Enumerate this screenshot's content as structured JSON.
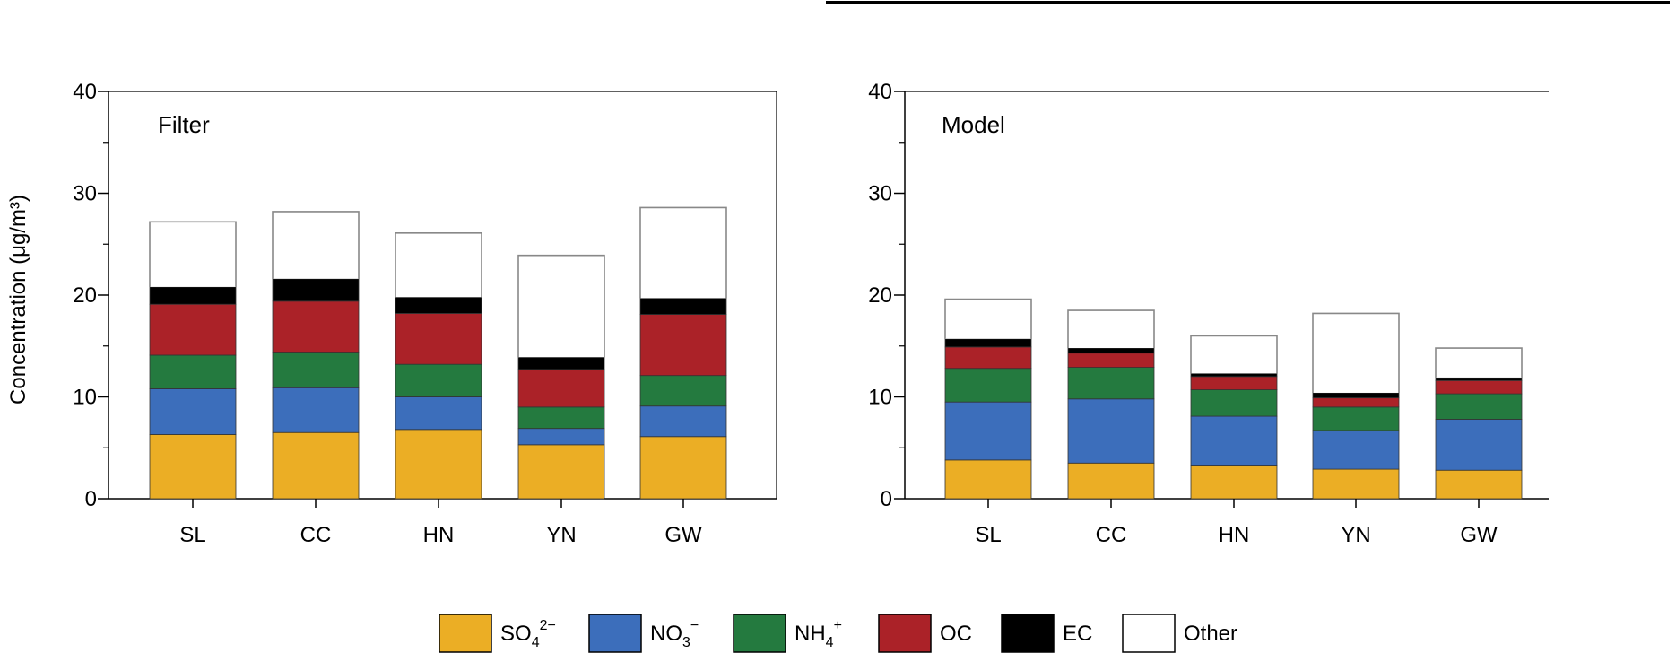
{
  "y_axis_label": "Concentration (μg/m³)",
  "colors": {
    "SO4": "#EBAE25",
    "NO3": "#3C6EBB",
    "NH4": "#247A3F",
    "OC": "#AB2228",
    "EC": "#000000",
    "Other": "#FFFFFF"
  },
  "legend": [
    {
      "key": "SO4",
      "base": "SO",
      "sub": "4",
      "sup": "2−"
    },
    {
      "key": "NO3",
      "base": "NO",
      "sub": "3",
      "sup": "−"
    },
    {
      "key": "NH4",
      "base": "NH",
      "sub": "4",
      "sup": "+"
    },
    {
      "key": "OC",
      "base": "OC",
      "sub": "",
      "sup": ""
    },
    {
      "key": "EC",
      "base": "EC",
      "sub": "",
      "sup": ""
    },
    {
      "key": "Other",
      "base": "Other",
      "sub": "",
      "sup": ""
    }
  ],
  "chart_data": [
    {
      "type": "bar",
      "stacked": true,
      "title": "Filter",
      "ylabel": "Concentration (μg/m³)",
      "ylim": [
        0,
        40
      ],
      "yticks": [
        0,
        10,
        20,
        30,
        40
      ],
      "categories": [
        "SL",
        "CC",
        "HN",
        "YN",
        "GW"
      ],
      "series": [
        {
          "name": "SO4",
          "values": [
            6.3,
            6.5,
            6.8,
            5.3,
            6.1
          ]
        },
        {
          "name": "NO3",
          "values": [
            4.5,
            4.4,
            3.2,
            1.6,
            3.0
          ]
        },
        {
          "name": "NH4",
          "values": [
            3.3,
            3.5,
            3.2,
            2.1,
            3.0
          ]
        },
        {
          "name": "OC",
          "values": [
            5.0,
            5.0,
            5.0,
            3.7,
            6.0
          ]
        },
        {
          "name": "EC",
          "values": [
            1.7,
            2.2,
            1.6,
            1.2,
            1.6
          ]
        },
        {
          "name": "Other",
          "values": [
            6.4,
            6.6,
            6.3,
            10.0,
            8.9
          ]
        }
      ]
    },
    {
      "type": "bar",
      "stacked": true,
      "title": "Model",
      "ylim": [
        0,
        40
      ],
      "yticks": [
        0,
        10,
        20,
        30,
        40
      ],
      "categories": [
        "SL",
        "CC",
        "HN",
        "YN",
        "GW"
      ],
      "series": [
        {
          "name": "SO4",
          "values": [
            3.8,
            3.5,
            3.3,
            2.9,
            2.8
          ]
        },
        {
          "name": "NO3",
          "values": [
            5.7,
            6.3,
            4.8,
            3.8,
            5.0
          ]
        },
        {
          "name": "NH4",
          "values": [
            3.3,
            3.1,
            2.6,
            2.3,
            2.5
          ]
        },
        {
          "name": "OC",
          "values": [
            2.1,
            1.4,
            1.3,
            0.9,
            1.3
          ]
        },
        {
          "name": "EC",
          "values": [
            0.8,
            0.5,
            0.3,
            0.5,
            0.3
          ]
        },
        {
          "name": "Other",
          "values": [
            3.9,
            3.7,
            3.7,
            7.8,
            2.9
          ]
        }
      ]
    }
  ]
}
